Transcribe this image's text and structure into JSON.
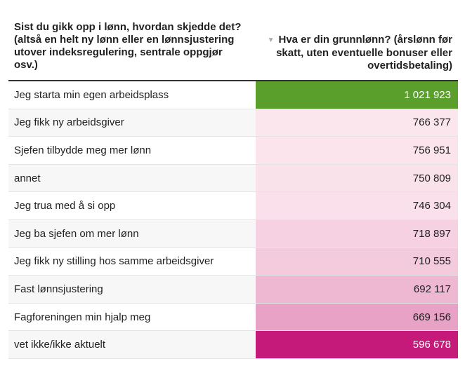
{
  "header": {
    "col1": "Sist du gikk opp i lønn, hvordan skjedde det? (altså en helt ny lønn eller en lønnsjustering utover indeksregulering, sentrale oppgjør osv.)",
    "col2": "Hva er din grunnlønn? (årslønn før skatt, uten eventuelle bonuser eller overtidsbetaling)",
    "sort_icon": "sort-desc-icon"
  },
  "chart_data": {
    "type": "table",
    "columns": [
      "Sist du gikk opp i lønn, hvordan skjedde det? (altså en helt ny lønn eller en lønnsjustering utover indeksregulering, sentrale oppgjør osv.)",
      "Hva er din grunnlønn? (årslønn før skatt, uten eventuelle bonuser eller overtidsbetaling)"
    ],
    "sort": "descending by second column",
    "rows": [
      {
        "label": "Jeg starta min egen arbeidsplass",
        "value": 1021923,
        "display": "1 021 923",
        "color": "#5a9e2c",
        "text_color": "#ffffff"
      },
      {
        "label": "Jeg fikk ny arbeidsgiver",
        "value": 766377,
        "display": "766 377",
        "color": "#fbe6ee",
        "text_color": "#222222"
      },
      {
        "label": "Sjefen tilbydde meg mer lønn",
        "value": 756951,
        "display": "756 951",
        "color": "#fbe4ec",
        "text_color": "#222222"
      },
      {
        "label": "annet",
        "value": 750809,
        "display": "750 809",
        "color": "#fae2eb",
        "text_color": "#222222"
      },
      {
        "label": "Jeg trua med å si opp",
        "value": 746304,
        "display": "746 304",
        "color": "#f9e0ea",
        "text_color": "#222222"
      },
      {
        "label": "Jeg ba sjefen om mer lønn",
        "value": 718897,
        "display": "718 897",
        "color": "#f5d1e2",
        "text_color": "#222222"
      },
      {
        "label": "Jeg fikk ny stilling hos samme arbeidsgiver",
        "value": 710555,
        "display": "710 555",
        "color": "#f3cbdd",
        "text_color": "#222222"
      },
      {
        "label": "Fast lønnsjustering",
        "value": 692117,
        "display": "692 117",
        "color": "#eeb8d3",
        "text_color": "#222222"
      },
      {
        "label": "Fagforeningen min hjalp meg",
        "value": 669156,
        "display": "669 156",
        "color": "#e8a2c6",
        "text_color": "#222222"
      },
      {
        "label": "vet ikke/ikke aktuelt",
        "value": 596678,
        "display": "596 678",
        "color": "#c51a7a",
        "text_color": "#ffffff"
      }
    ]
  }
}
